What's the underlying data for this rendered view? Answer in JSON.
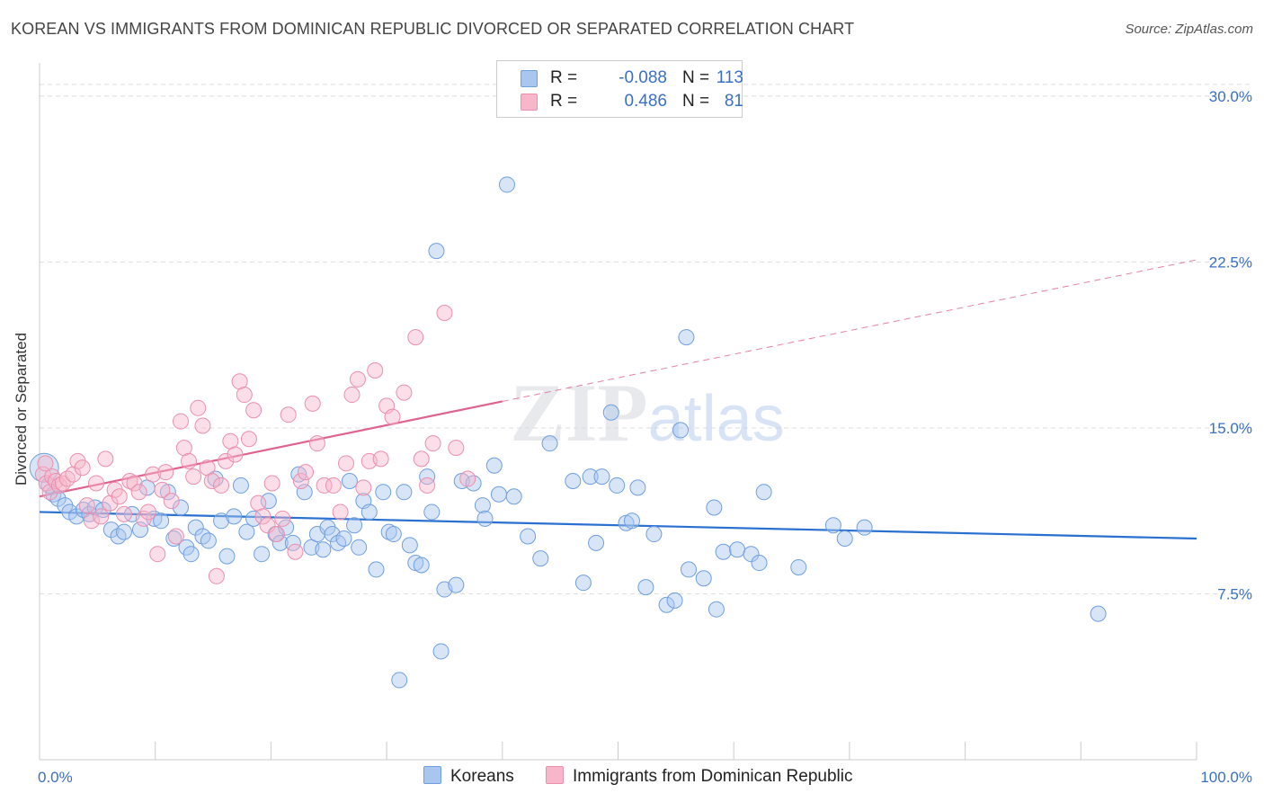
{
  "title": "KOREAN VS IMMIGRANTS FROM DOMINICAN REPUBLIC DIVORCED OR SEPARATED CORRELATION CHART",
  "source": "Source: ZipAtlas.com",
  "watermark": "ZIPatlas",
  "legend": {
    "rows": [
      {
        "r_label": "R =",
        "r_value": "-0.088",
        "n_label": "N =",
        "n_value": "113",
        "color": "#a9c6ee"
      },
      {
        "r_label": "R =",
        "r_value": "0.486",
        "n_label": "N =",
        "n_value": "81",
        "color": "#f7b6ca"
      }
    ]
  },
  "bottom_legend": [
    "Koreans",
    "Immigrants from Dominican Republic"
  ],
  "chart_data": {
    "type": "scatter",
    "title": "KOREAN VS IMMIGRANTS FROM DOMINICAN REPUBLIC DIVORCED OR SEPARATED CORRELATION CHART",
    "xlabel": "",
    "ylabel": "Divorced or Separated",
    "xlim": [
      0,
      100
    ],
    "ylim": [
      0,
      31.5
    ],
    "x_ticks": [
      "0.0%",
      "100.0%"
    ],
    "y_ticks": [
      {
        "value": 7.5,
        "label": "7.5%"
      },
      {
        "value": 15.0,
        "label": "15.0%"
      },
      {
        "value": 22.5,
        "label": "22.5%"
      },
      {
        "value": 30.0,
        "label": "30.0%"
      }
    ],
    "grid": "horizontal dashed",
    "series": [
      {
        "name": "Koreans",
        "color": "#6f9fe0",
        "fill": "#a9c6ee",
        "trend": {
          "x": [
            0,
            100
          ],
          "y": [
            11.2,
            10.0
          ],
          "style": "solid",
          "color": "#2970d0"
        },
        "points": [
          [
            0.4,
            13.2
          ],
          [
            0.8,
            12.4
          ],
          [
            1.2,
            12.0
          ],
          [
            1.6,
            11.8
          ],
          [
            2.2,
            11.5
          ],
          [
            2.6,
            11.2
          ],
          [
            3.2,
            11.0
          ],
          [
            3.8,
            11.3
          ],
          [
            4.3,
            11.1
          ],
          [
            4.8,
            11.4
          ],
          [
            5.5,
            11.3
          ],
          [
            6.2,
            10.4
          ],
          [
            6.8,
            10.1
          ],
          [
            7.3,
            10.3
          ],
          [
            8.0,
            11.1
          ],
          [
            8.7,
            10.4
          ],
          [
            9.3,
            12.3
          ],
          [
            9.9,
            10.9
          ],
          [
            10.5,
            10.8
          ],
          [
            11.1,
            12.1
          ],
          [
            11.6,
            10.0
          ],
          [
            12.2,
            11.4
          ],
          [
            12.7,
            9.6
          ],
          [
            13.1,
            9.3
          ],
          [
            13.5,
            10.5
          ],
          [
            14.1,
            10.1
          ],
          [
            14.6,
            9.9
          ],
          [
            15.2,
            12.7
          ],
          [
            15.7,
            10.8
          ],
          [
            16.2,
            9.2
          ],
          [
            16.8,
            11.0
          ],
          [
            17.4,
            12.4
          ],
          [
            17.9,
            10.3
          ],
          [
            18.5,
            10.9
          ],
          [
            19.2,
            9.3
          ],
          [
            19.8,
            11.7
          ],
          [
            20.4,
            10.2
          ],
          [
            20.8,
            9.8
          ],
          [
            21.3,
            10.5
          ],
          [
            21.9,
            9.8
          ],
          [
            22.4,
            12.9
          ],
          [
            22.9,
            12.1
          ],
          [
            23.5,
            9.6
          ],
          [
            24.0,
            10.2
          ],
          [
            24.5,
            9.5
          ],
          [
            24.9,
            10.5
          ],
          [
            25.3,
            10.2
          ],
          [
            25.8,
            9.8
          ],
          [
            26.3,
            10.0
          ],
          [
            26.8,
            12.6
          ],
          [
            27.2,
            10.6
          ],
          [
            27.6,
            9.6
          ],
          [
            28.0,
            11.7
          ],
          [
            28.5,
            11.2
          ],
          [
            29.1,
            8.6
          ],
          [
            29.7,
            12.1
          ],
          [
            30.2,
            10.3
          ],
          [
            30.6,
            10.2
          ],
          [
            31.5,
            12.1
          ],
          [
            32.0,
            9.7
          ],
          [
            32.5,
            8.9
          ],
          [
            33.0,
            8.8
          ],
          [
            33.5,
            12.8
          ],
          [
            33.9,
            11.2
          ],
          [
            34.3,
            23.0
          ],
          [
            34.7,
            4.9
          ],
          [
            35.0,
            7.7
          ],
          [
            36.0,
            7.9
          ],
          [
            36.5,
            12.6
          ],
          [
            37.5,
            12.5
          ],
          [
            38.3,
            11.5
          ],
          [
            38.5,
            10.9
          ],
          [
            39.3,
            13.3
          ],
          [
            39.7,
            12.0
          ],
          [
            40.4,
            26.0
          ],
          [
            41.0,
            11.9
          ],
          [
            42.2,
            10.1
          ],
          [
            43.3,
            9.1
          ],
          [
            44.1,
            14.3
          ],
          [
            46.1,
            12.6
          ],
          [
            47.0,
            8.0
          ],
          [
            47.6,
            12.8
          ],
          [
            48.1,
            9.8
          ],
          [
            48.6,
            12.8
          ],
          [
            49.4,
            15.7
          ],
          [
            49.9,
            12.4
          ],
          [
            50.7,
            10.7
          ],
          [
            51.2,
            10.8
          ],
          [
            51.7,
            12.3
          ],
          [
            52.4,
            7.8
          ],
          [
            53.1,
            10.2
          ],
          [
            54.2,
            7.0
          ],
          [
            54.9,
            7.2
          ],
          [
            55.4,
            14.9
          ],
          [
            55.9,
            19.1
          ],
          [
            56.1,
            8.6
          ],
          [
            57.4,
            8.2
          ],
          [
            58.3,
            11.4
          ],
          [
            58.5,
            6.8
          ],
          [
            59.1,
            9.4
          ],
          [
            60.3,
            9.5
          ],
          [
            61.5,
            9.3
          ],
          [
            62.2,
            8.9
          ],
          [
            62.6,
            12.1
          ],
          [
            65.6,
            8.7
          ],
          [
            68.6,
            10.6
          ],
          [
            69.6,
            10.0
          ],
          [
            71.3,
            10.5
          ],
          [
            91.5,
            6.6
          ],
          [
            31.1,
            3.6
          ]
        ]
      },
      {
        "name": "Immigrants from Dominican Republic",
        "color": "#eb8fae",
        "fill": "#f7b6ca",
        "trend": {
          "x": [
            0,
            40
          ],
          "y": [
            11.9,
            16.2
          ],
          "style": "solid",
          "color": "#e06290",
          "extension": {
            "x": [
              40,
              100
            ],
            "y": [
              16.2,
              22.6
            ],
            "style": "dashed"
          }
        },
        "points": [
          [
            0.3,
            12.9
          ],
          [
            0.6,
            12.5
          ],
          [
            0.9,
            12.1
          ],
          [
            1.1,
            12.8
          ],
          [
            1.4,
            12.6
          ],
          [
            1.7,
            12.4
          ],
          [
            2.0,
            12.5
          ],
          [
            2.4,
            12.7
          ],
          [
            2.9,
            12.9
          ],
          [
            3.3,
            13.5
          ],
          [
            3.7,
            13.2
          ],
          [
            4.1,
            11.5
          ],
          [
            4.5,
            10.8
          ],
          [
            4.9,
            12.5
          ],
          [
            5.3,
            11.0
          ],
          [
            5.7,
            13.6
          ],
          [
            6.1,
            11.6
          ],
          [
            6.5,
            12.2
          ],
          [
            6.9,
            11.9
          ],
          [
            7.3,
            11.1
          ],
          [
            7.8,
            12.6
          ],
          [
            8.2,
            12.5
          ],
          [
            8.6,
            12.1
          ],
          [
            9.0,
            10.9
          ],
          [
            9.4,
            11.2
          ],
          [
            9.8,
            12.9
          ],
          [
            10.2,
            9.3
          ],
          [
            10.6,
            12.2
          ],
          [
            10.9,
            13.0
          ],
          [
            11.4,
            11.7
          ],
          [
            11.8,
            10.1
          ],
          [
            12.2,
            15.3
          ],
          [
            12.5,
            14.1
          ],
          [
            12.9,
            13.5
          ],
          [
            13.3,
            12.8
          ],
          [
            13.7,
            15.9
          ],
          [
            14.1,
            15.1
          ],
          [
            14.5,
            13.2
          ],
          [
            14.9,
            12.6
          ],
          [
            15.3,
            8.3
          ],
          [
            15.7,
            12.4
          ],
          [
            16.1,
            13.5
          ],
          [
            16.5,
            14.4
          ],
          [
            16.9,
            13.8
          ],
          [
            17.3,
            17.1
          ],
          [
            17.7,
            16.5
          ],
          [
            18.1,
            14.5
          ],
          [
            18.5,
            15.8
          ],
          [
            18.9,
            11.6
          ],
          [
            19.3,
            11.0
          ],
          [
            19.7,
            10.6
          ],
          [
            20.1,
            12.5
          ],
          [
            20.5,
            10.2
          ],
          [
            21.0,
            10.9
          ],
          [
            21.5,
            15.6
          ],
          [
            22.1,
            9.4
          ],
          [
            22.6,
            12.6
          ],
          [
            23.0,
            13.0
          ],
          [
            23.6,
            16.1
          ],
          [
            24.0,
            14.3
          ],
          [
            24.6,
            12.4
          ],
          [
            25.4,
            12.4
          ],
          [
            26.0,
            11.2
          ],
          [
            26.5,
            13.4
          ],
          [
            27.0,
            16.5
          ],
          [
            27.5,
            17.2
          ],
          [
            28.0,
            12.3
          ],
          [
            28.5,
            13.5
          ],
          [
            29.0,
            17.6
          ],
          [
            29.5,
            13.6
          ],
          [
            30.0,
            16.0
          ],
          [
            30.5,
            15.5
          ],
          [
            31.5,
            16.6
          ],
          [
            32.5,
            19.1
          ],
          [
            33.0,
            13.6
          ],
          [
            33.5,
            12.4
          ],
          [
            34.0,
            14.3
          ],
          [
            35.0,
            20.2
          ],
          [
            36.0,
            14.1
          ],
          [
            37.0,
            12.7
          ],
          [
            0.5,
            13.4
          ]
        ]
      }
    ]
  }
}
